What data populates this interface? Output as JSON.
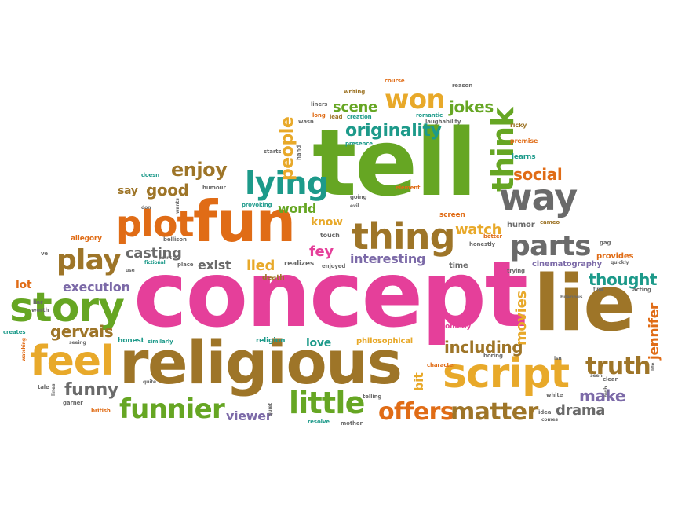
{
  "colors": {
    "green": "#66a623",
    "pink": "#e53f9a",
    "brown": "#9e7528",
    "orange": "#e06c16",
    "teal": "#1d9a8a",
    "gray": "#6a6a6a",
    "gold": "#e8a92a",
    "purple": "#7c6aa8"
  },
  "words": {
    "tell": "tell",
    "concept": "concept",
    "lie": "lie",
    "fun": "fun",
    "religious": "religious",
    "story": "story",
    "script": "script",
    "feel": "feel",
    "plot": "plot",
    "thing": "thing",
    "way": "way",
    "lying": "lying",
    "think": "think",
    "won": "won",
    "originality": "originality",
    "funnier": "funnier",
    "little": "little",
    "offers": "offers",
    "matter": "matter",
    "truth": "truth",
    "parts": "parts",
    "play": "play",
    "people": "people",
    "enjoy": "enjoy",
    "good": "good",
    "social": "social",
    "watch": "watch",
    "scene": "scene",
    "jokes": "jokes",
    "casting": "casting",
    "fey": "fey",
    "thought": "thought",
    "jennifer": "jennifer",
    "movies": "movies",
    "including": "including",
    "make": "make",
    "drama": "drama",
    "gervais": "gervais",
    "funny": "funny",
    "execution": "execution",
    "interesting": "interesting",
    "lied": "lied",
    "exist": "exist",
    "world": "world",
    "know": "know",
    "love": "love",
    "viewer": "viewer",
    "bit": "bit",
    "philosophical": "philosophical",
    "cinematography": "cinematography",
    "say": "say",
    "lot": "lot",
    "humor": "humor",
    "provides": "provides",
    "comedy": "comedy",
    "realizes": "realizes",
    "time": "time",
    "death": "death",
    "religion": "religion",
    "honest": "honest",
    "similarly": "similarly",
    "learns": "learns",
    "premise": "premise",
    "ricky": "ricky",
    "reason": "reason",
    "course": "course",
    "writing": "writing",
    "liners": "liners",
    "wasn": "wasn",
    "long": "long",
    "lead": "lead",
    "creation": "creation",
    "romantic": "romantic",
    "laughability": "laughability",
    "presence": "presence",
    "starts": "starts",
    "hand": "hand",
    "doesn": "doesn",
    "humour": "humour",
    "don": "don",
    "wants": "wants",
    "provoking": "provoking",
    "going": "going",
    "evil": "evil",
    "element": "element",
    "screen": "screen",
    "cameo": "cameo",
    "allegory": "allegory",
    "bellison": "bellison",
    "touch": "touch",
    "better": "better",
    "honestly": "honestly",
    "gag": "gag",
    "quickly": "quickly",
    "ve": "ve",
    "fictional": "fictional",
    "point": "point",
    "place": "place",
    "enjoyed": "enjoyed",
    "trying": "trying",
    "fina": "fina",
    "acting": "acting",
    "hilarious": "hilarious",
    "liar": "liar",
    "use": "use",
    "worth": "worth",
    "creates": "creates",
    "seeing": "seeing",
    "watching": "watching",
    "character": "character",
    "boring": "boring",
    "isn": "isn",
    "seen": "seen",
    "clear": "clear",
    "life": "life",
    "tale": "tale",
    "lines": "lines",
    "quite": "quite",
    "garner": "garner",
    "british": "british",
    "quiet": "quiet",
    "resolve": "resolve",
    "mother": "mother",
    "telling": "telling",
    "idea": "idea",
    "comes": "comes",
    "white": "white",
    "high": "high"
  }
}
